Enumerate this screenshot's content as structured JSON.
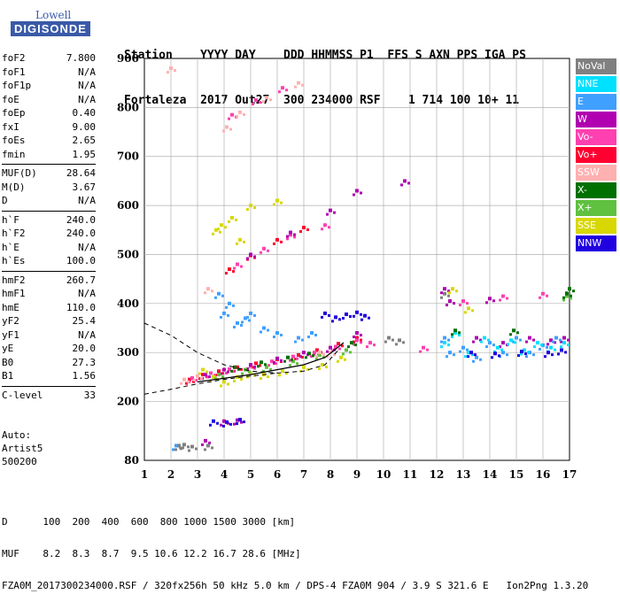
{
  "logo": {
    "line1": "Lowell",
    "line2": "DIGISONDE"
  },
  "header": {
    "line1": "Station    YYYY DAY    DDD HHMMSS P1  FFS S AXN PPS IGA PS",
    "line2": "Fortaleza  2017 Out27  300 234000 RSF    1 714 100 10+ 11"
  },
  "params": [
    [
      [
        "foF2",
        "7.800"
      ],
      [
        "foF1",
        "N/A"
      ],
      [
        "foF1p",
        "N/A"
      ],
      [
        "foE",
        "N/A"
      ],
      [
        "foEp",
        "0.40"
      ],
      [
        "fxI",
        "9.00"
      ],
      [
        "foEs",
        "2.65"
      ],
      [
        "fmin",
        "1.95"
      ]
    ],
    [
      [
        "MUF(D)",
        "28.64"
      ],
      [
        "M(D)",
        "3.67"
      ],
      [
        "D",
        "N/A"
      ]
    ],
    [
      [
        "h`F",
        "240.0"
      ],
      [
        "h`F2",
        "240.0"
      ],
      [
        "h`E",
        "N/A"
      ],
      [
        "h`Es",
        "100.0"
      ]
    ],
    [
      [
        "hmF2",
        "260.7"
      ],
      [
        "hmF1",
        "N/A"
      ],
      [
        "hmE",
        "110.0"
      ],
      [
        "yF2",
        "25.4"
      ],
      [
        "yF1",
        "N/A"
      ],
      [
        "yE",
        "20.0"
      ],
      [
        "B0",
        "27.3"
      ],
      [
        "B1",
        "1.56"
      ]
    ],
    [
      [
        "C-level",
        "33"
      ]
    ]
  ],
  "auto": {
    "line1": "Auto:",
    "line2": "Artist5",
    "line3": "500200"
  },
  "legend": [
    {
      "label": "NoVal",
      "color": "#808080"
    },
    {
      "label": "NNE",
      "color": "#00e0ff"
    },
    {
      "label": "E",
      "color": "#40a0ff"
    },
    {
      "label": "W",
      "color": "#b000b0"
    },
    {
      "label": "Vo-",
      "color": "#ff40b0"
    },
    {
      "label": "Vo+",
      "color": "#ff0030"
    },
    {
      "label": "SSW",
      "color": "#ffb0b0"
    },
    {
      "label": "X-",
      "color": "#007000"
    },
    {
      "label": "X+",
      "color": "#60c040"
    },
    {
      "label": "SSE",
      "color": "#d8d800"
    },
    {
      "label": "NNW",
      "color": "#2000e0"
    }
  ],
  "footer": {
    "line1": "D      100  200  400  600  800 1000 1500 3000 [km]",
    "line2": "MUF    8.2  8.3  8.7  9.5 10.6 12.2 16.7 28.6 [MHz]",
    "line3": "FZA0M_2017300234000.RSF / 320fx256h 50 kHz 5.0 km / DPS-4 FZA0M 904 / 3.9 S 321.6 E   Ion2Png 1.3.20"
  },
  "chart_data": {
    "type": "scatter",
    "xlim": [
      1,
      17
    ],
    "ylim": [
      80,
      900
    ],
    "xticks": [
      1,
      2,
      3,
      4,
      5,
      6,
      7,
      8,
      9,
      10,
      11,
      12,
      13,
      14,
      15,
      16,
      17
    ],
    "yticks": [
      80,
      200,
      300,
      400,
      500,
      600,
      700,
      800,
      900
    ],
    "grid": true,
    "series": [
      {
        "color": "#ff0030",
        "points": [
          [
            2.7,
            245
          ],
          [
            3.2,
            255
          ],
          [
            3.8,
            262
          ],
          [
            4.5,
            270
          ],
          [
            5.2,
            278
          ],
          [
            6.0,
            286
          ],
          [
            6.8,
            295
          ],
          [
            7.5,
            305
          ],
          [
            8.3,
            318
          ],
          [
            9.0,
            330
          ],
          [
            4.2,
            470
          ],
          [
            5.0,
            498
          ],
          [
            6.0,
            530
          ],
          [
            7.0,
            555
          ]
        ]
      },
      {
        "color": "#ff40b0",
        "points": [
          [
            2.8,
            248
          ],
          [
            3.5,
            258
          ],
          [
            4.2,
            266
          ],
          [
            5.0,
            272
          ],
          [
            5.8,
            282
          ],
          [
            6.6,
            292
          ],
          [
            7.4,
            300
          ],
          [
            8.2,
            312
          ],
          [
            9.0,
            325
          ],
          [
            4.5,
            480
          ],
          [
            5.5,
            512
          ],
          [
            6.5,
            540
          ],
          [
            7.8,
            560
          ],
          [
            9.5,
            320
          ],
          [
            11.5,
            310
          ],
          [
            13,
            405
          ],
          [
            14.5,
            415
          ],
          [
            16,
            420
          ],
          [
            4.3,
            785
          ],
          [
            5.2,
            815
          ],
          [
            6.2,
            840
          ]
        ]
      },
      {
        "color": "#b000b0",
        "points": [
          [
            3.3,
            255
          ],
          [
            4.0,
            265
          ],
          [
            5.0,
            275
          ],
          [
            6.0,
            288
          ],
          [
            7.0,
            300
          ],
          [
            8.0,
            310
          ],
          [
            9.0,
            340
          ],
          [
            5.0,
            500
          ],
          [
            6.5,
            545
          ],
          [
            8.0,
            590
          ],
          [
            9.0,
            630
          ],
          [
            10.8,
            650
          ],
          [
            12.3,
            430
          ],
          [
            13.5,
            330
          ],
          [
            14.5,
            320
          ],
          [
            15.5,
            330
          ],
          [
            16.3,
            325
          ],
          [
            12.5,
            405
          ],
          [
            14.0,
            410
          ],
          [
            16.8,
            330
          ],
          [
            4.0,
            160
          ],
          [
            4.5,
            162
          ],
          [
            3.3,
            120
          ]
        ]
      },
      {
        "color": "#40a0ff",
        "points": [
          [
            4.0,
            380
          ],
          [
            4.5,
            360
          ],
          [
            4.8,
            370
          ],
          [
            5.5,
            350
          ],
          [
            6.0,
            340
          ],
          [
            6.8,
            330
          ],
          [
            7.3,
            340
          ],
          [
            3.8,
            420
          ],
          [
            4.2,
            400
          ],
          [
            5.0,
            380
          ],
          [
            12.3,
            330
          ],
          [
            12.5,
            300
          ],
          [
            13.0,
            310
          ],
          [
            13.5,
            290
          ],
          [
            14.0,
            320
          ],
          [
            14.5,
            300
          ],
          [
            15.0,
            330
          ],
          [
            15.5,
            300
          ],
          [
            16.0,
            315
          ],
          [
            16.5,
            330
          ],
          [
            2.2,
            110
          ]
        ]
      },
      {
        "color": "#00e0ff",
        "points": [
          [
            12.3,
            320
          ],
          [
            12.7,
            340
          ],
          [
            13.2,
            300
          ],
          [
            13.8,
            330
          ],
          [
            14.3,
            310
          ],
          [
            14.8,
            325
          ],
          [
            15.3,
            305
          ],
          [
            15.8,
            320
          ],
          [
            16.3,
            310
          ],
          [
            16.8,
            320
          ]
        ]
      },
      {
        "color": "#2000e0",
        "points": [
          [
            7.8,
            380
          ],
          [
            8.2,
            372
          ],
          [
            8.6,
            378
          ],
          [
            9.0,
            382
          ],
          [
            9.3,
            375
          ],
          [
            3.6,
            160
          ],
          [
            4.1,
            158
          ],
          [
            4.6,
            163
          ],
          [
            13.3,
            300
          ],
          [
            14.2,
            298
          ],
          [
            15.2,
            302
          ],
          [
            16.2,
            300
          ],
          [
            16.7,
            305
          ]
        ]
      },
      {
        "color": "#d8d800",
        "points": [
          [
            3.2,
            265
          ],
          [
            3.6,
            250
          ],
          [
            4.0,
            240
          ],
          [
            4.5,
            250
          ],
          [
            5.0,
            258
          ],
          [
            5.5,
            255
          ],
          [
            6.2,
            262
          ],
          [
            7.0,
            270
          ],
          [
            7.7,
            275
          ],
          [
            8.4,
            290
          ],
          [
            3.9,
            560
          ],
          [
            4.3,
            575
          ],
          [
            4.6,
            530
          ],
          [
            3.7,
            550
          ],
          [
            5.0,
            600
          ],
          [
            6.0,
            610
          ],
          [
            12.6,
            430
          ],
          [
            13.2,
            390
          ]
        ]
      },
      {
        "color": "#60c040",
        "points": [
          [
            3.8,
            255
          ],
          [
            4.8,
            265
          ],
          [
            5.6,
            270
          ],
          [
            6.6,
            282
          ],
          [
            7.6,
            295
          ],
          [
            8.6,
            305
          ],
          [
            16.9,
            415
          ]
        ]
      },
      {
        "color": "#007000",
        "points": [
          [
            4.4,
            270
          ],
          [
            5.4,
            280
          ],
          [
            6.4,
            290
          ],
          [
            7.2,
            298
          ],
          [
            8.8,
            320
          ],
          [
            12.7,
            345
          ],
          [
            14.9,
            345
          ],
          [
            16.9,
            420
          ],
          [
            17.0,
            430
          ]
        ]
      },
      {
        "color": "#ffb0b0",
        "points": [
          [
            2.5,
            245
          ],
          [
            3.0,
            252
          ],
          [
            3.4,
            430
          ],
          [
            4.1,
            760
          ],
          [
            4.6,
            790
          ],
          [
            5.6,
            820
          ],
          [
            6.8,
            850
          ],
          [
            2.0,
            880
          ],
          [
            7.6,
            300
          ],
          [
            8.0,
            300
          ]
        ]
      },
      {
        "color": "#808080",
        "points": [
          [
            2.3,
            110
          ],
          [
            2.8,
            108
          ],
          [
            2.5,
            112
          ],
          [
            3.4,
            110
          ],
          [
            10.2,
            330
          ],
          [
            10.6,
            325
          ],
          [
            12.3,
            420
          ]
        ]
      }
    ]
  }
}
